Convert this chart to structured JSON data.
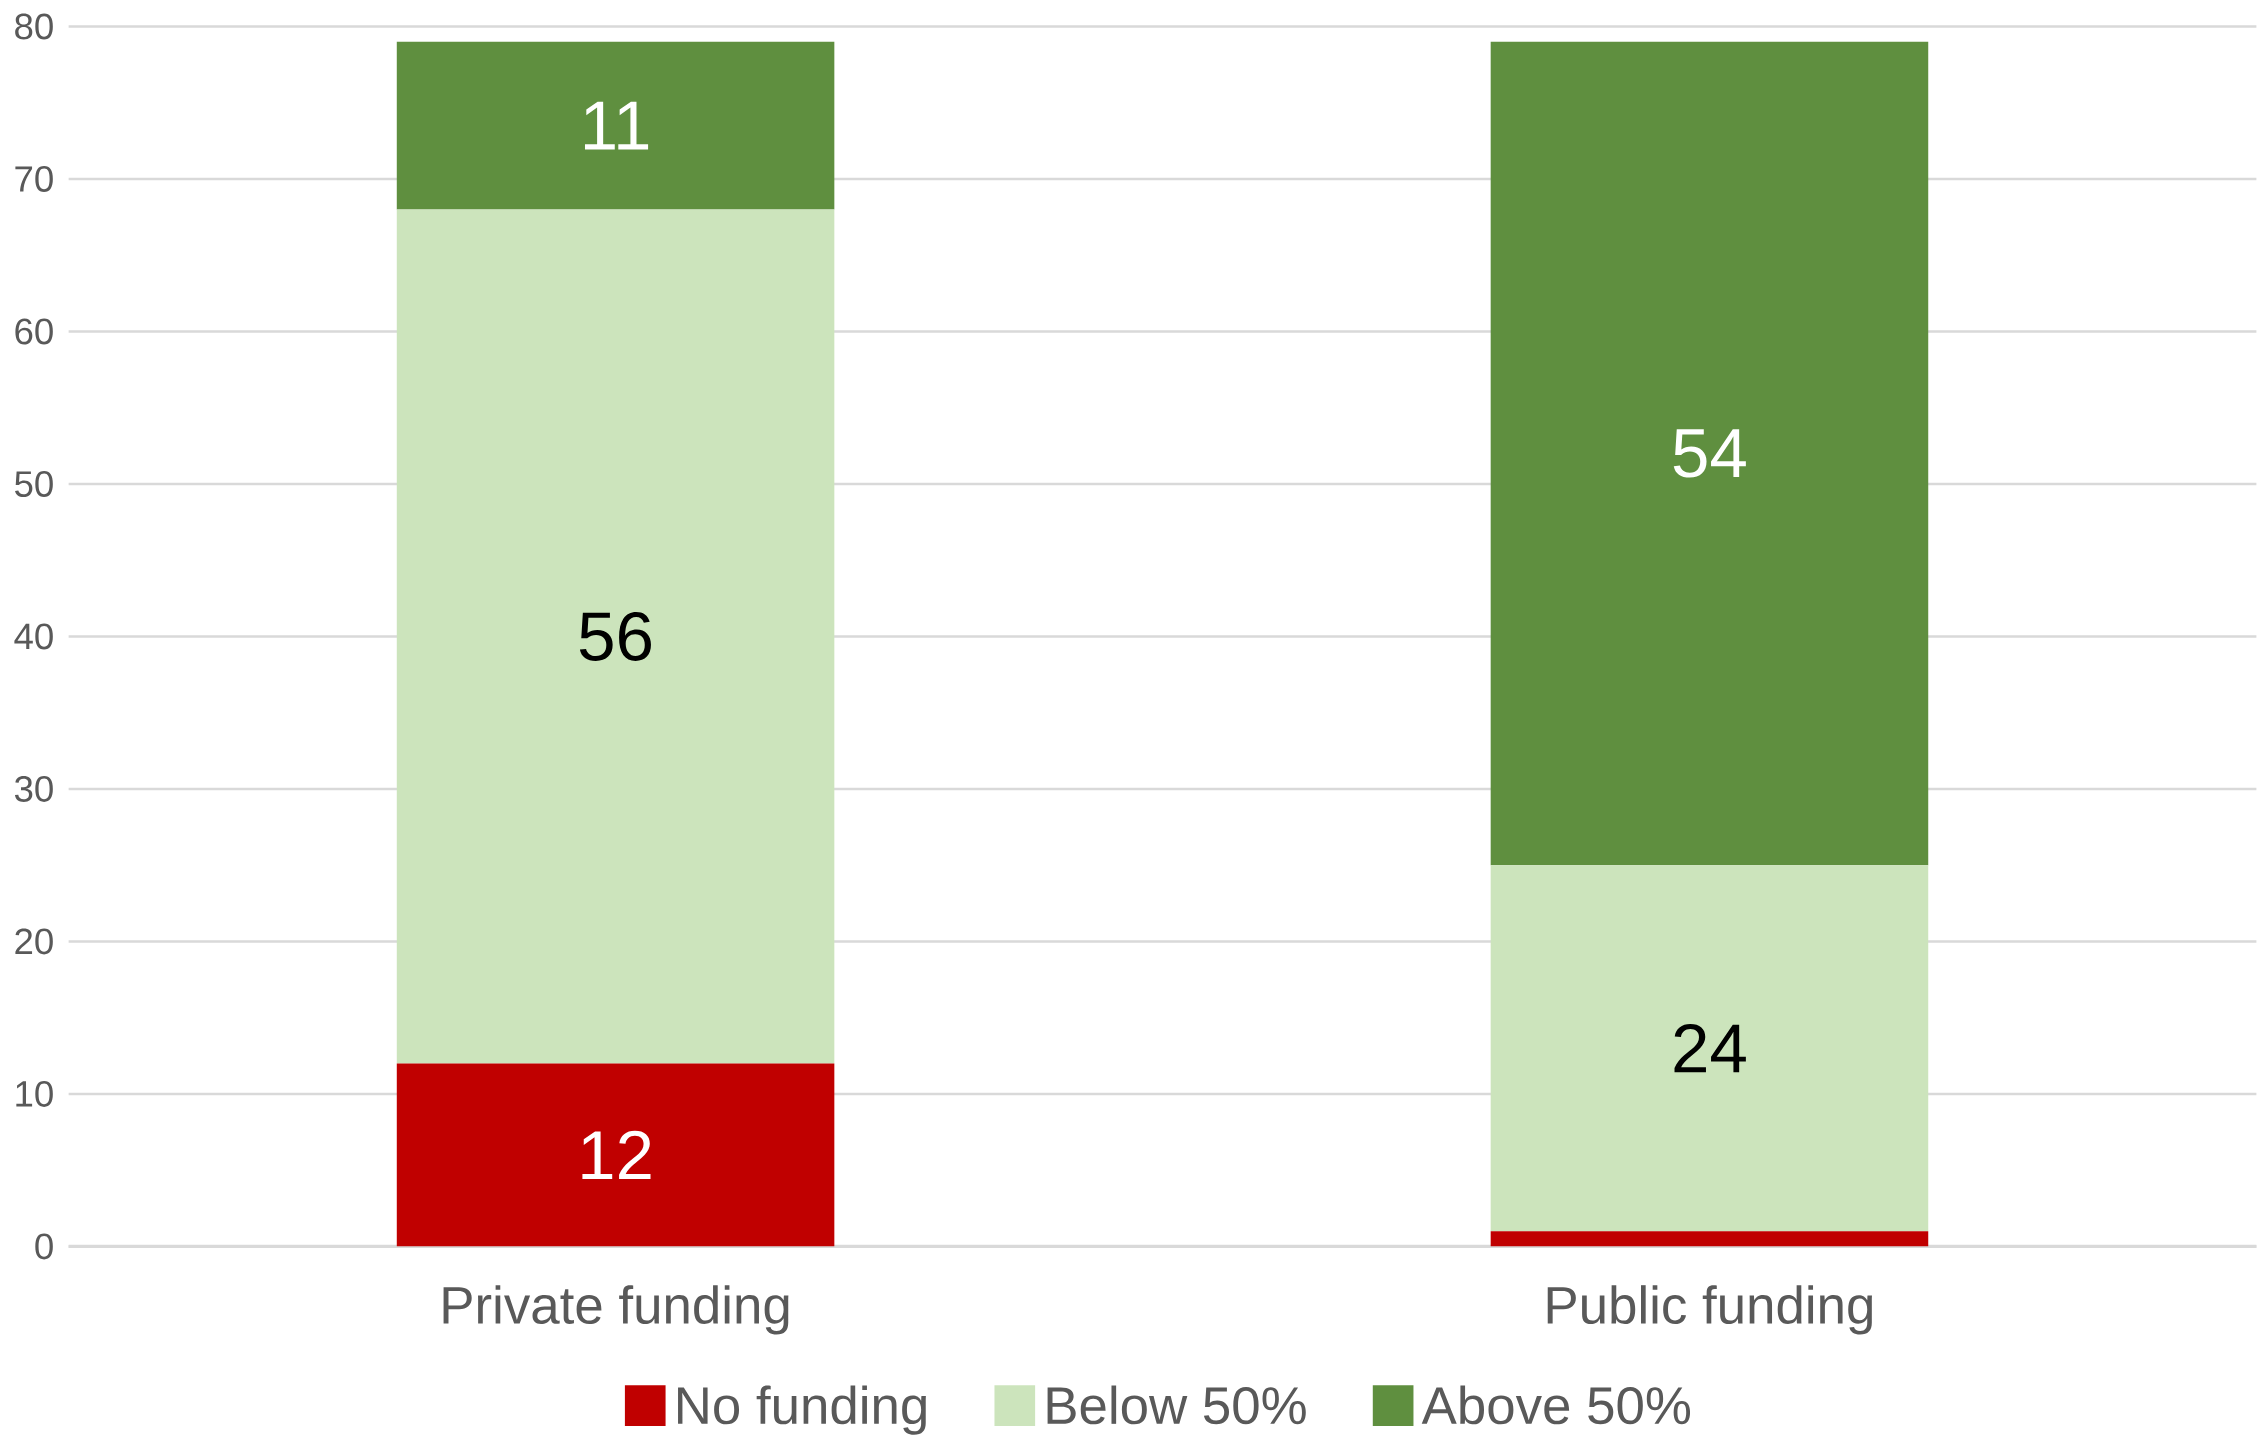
{
  "chart_data": {
    "type": "bar",
    "stacked": true,
    "categories": [
      "Private funding",
      "Public funding"
    ],
    "series": [
      {
        "name": "No funding",
        "color": "#c00000",
        "values": [
          12,
          1
        ],
        "value_labels": [
          "12",
          null
        ]
      },
      {
        "name": "Below 50%",
        "color": "#cce4bc",
        "values": [
          56,
          24
        ],
        "value_labels": [
          "56",
          "24"
        ]
      },
      {
        "name": "Above 50%",
        "color": "#5f8f3f",
        "values": [
          11,
          54
        ],
        "value_labels": [
          "11",
          "54"
        ]
      }
    ],
    "ylim": [
      0,
      80
    ],
    "yticks": [
      0,
      10,
      20,
      30,
      40,
      50,
      60,
      70,
      80
    ],
    "grid": "y",
    "legend": "bottom"
  }
}
